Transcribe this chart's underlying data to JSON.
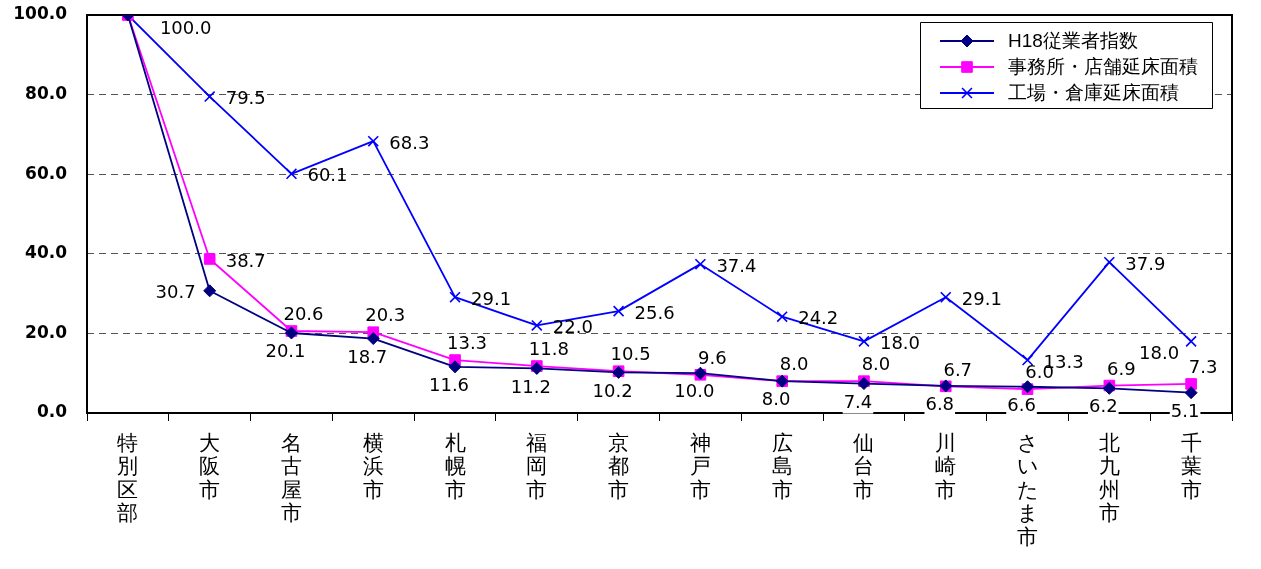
{
  "chart_data": {
    "type": "line",
    "categories": [
      "特別区部",
      "大阪市",
      "名古屋市",
      "横浜市",
      "札幌市",
      "福岡市",
      "京都市",
      "神戸市",
      "広島市",
      "仙台市",
      "川崎市",
      "さいたま市",
      "北九州市",
      "千葉市"
    ],
    "series": [
      {
        "name": "H18従業者指数",
        "color": "#000080",
        "marker": "diamond",
        "values": [
          100.0,
          30.7,
          20.1,
          18.7,
          11.6,
          11.2,
          10.2,
          10.0,
          8.0,
          7.4,
          6.8,
          6.6,
          6.2,
          5.1
        ],
        "value_labels": [
          null,
          "30.7",
          "20.1",
          "18.7",
          "11.6",
          "11.2",
          "10.2",
          "10.0",
          "8.0",
          "7.4",
          "6.8",
          "6.6",
          "6.2",
          "5.1"
        ]
      },
      {
        "name": "事務所・店舗延床面積",
        "color": "#ff00ff",
        "marker": "square",
        "values": [
          100.0,
          38.7,
          20.6,
          20.3,
          13.3,
          11.8,
          10.5,
          9.6,
          8.0,
          8.0,
          6.7,
          6.0,
          6.9,
          7.3
        ],
        "value_labels": [
          null,
          "38.7",
          "20.6",
          "20.3",
          "13.3",
          "11.8",
          "10.5",
          "9.6",
          "8.0",
          "8.0",
          "6.7",
          "6.0",
          "6.9",
          "7.3"
        ]
      },
      {
        "name": "工場・倉庫延床面積",
        "color": "#0000ff",
        "marker": "cross",
        "values": [
          100.0,
          79.5,
          60.1,
          68.3,
          29.1,
          22.0,
          25.6,
          37.4,
          24.2,
          18.0,
          29.1,
          13.3,
          37.9,
          18.0
        ],
        "value_labels": [
          "100.0",
          "79.5",
          "60.1",
          "68.3",
          "29.1",
          "22.0",
          "25.6",
          "37.4",
          "24.2",
          "18.0",
          "29.1",
          "13.3",
          "37.9",
          "18.0"
        ]
      }
    ],
    "ylim": [
      0,
      100
    ],
    "yticks": [
      {
        "value": 0,
        "label": "0.0"
      },
      {
        "value": 20,
        "label": "20.0"
      },
      {
        "value": 40,
        "label": "40.0"
      },
      {
        "value": 60,
        "label": "60.0"
      },
      {
        "value": 80,
        "label": "80.0"
      },
      {
        "value": 100,
        "label": "100.0"
      }
    ],
    "grid": "y",
    "legend": "top right"
  }
}
